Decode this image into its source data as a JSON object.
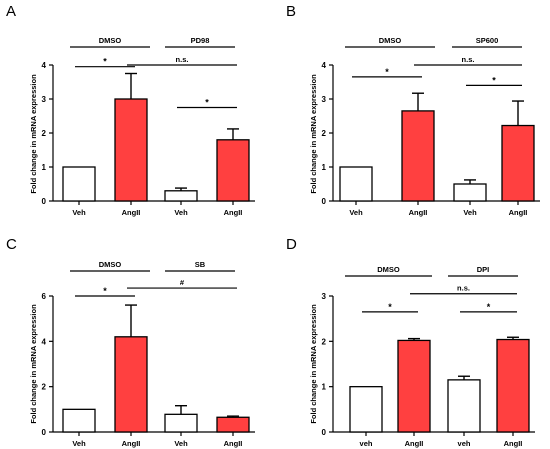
{
  "colors": {
    "bar_fill": "#ff4040",
    "bar_open": "#ffffff",
    "stroke": "#000000"
  },
  "chart_data": [
    {
      "type": "bar",
      "panel": "A",
      "ylabel": "Fold change in mRNA expression",
      "ylim": [
        0,
        4
      ],
      "yticks": [
        "0",
        "1",
        "2",
        "3",
        "4"
      ],
      "categories": [
        "Veh",
        "AngII",
        "Veh",
        "AngII"
      ],
      "values": [
        1.0,
        3.0,
        0.3,
        1.8
      ],
      "errors": [
        0,
        0.75,
        0.08,
        0.32
      ],
      "filled": [
        false,
        true,
        false,
        true
      ],
      "groups": [
        {
          "label": "DMSO",
          "bars": [
            0,
            1
          ]
        },
        {
          "label": "PD98",
          "bars": [
            2,
            3
          ]
        }
      ],
      "comparisons": [
        {
          "a": 0,
          "b": 1,
          "label": "*",
          "y": 3.95
        },
        {
          "a": 2,
          "b": 3,
          "label": "*",
          "y": 2.75
        },
        {
          "a": 1,
          "b": 3,
          "label": "n.s.",
          "y": 4.0
        }
      ]
    },
    {
      "type": "bar",
      "panel": "B",
      "ylabel": "Fold change in mRNA expression",
      "ylim": [
        0,
        4
      ],
      "yticks": [
        "0",
        "1",
        "2",
        "3",
        "4"
      ],
      "categories": [
        "Veh",
        "AngII",
        "Veh",
        "AngII"
      ],
      "values": [
        1.0,
        2.65,
        0.5,
        2.22
      ],
      "errors": [
        0,
        0.52,
        0.12,
        0.72
      ],
      "filled": [
        false,
        true,
        false,
        true
      ],
      "groups": [
        {
          "label": "DMSO",
          "bars": [
            0,
            1
          ]
        },
        {
          "label": "SP600",
          "bars": [
            2,
            3
          ]
        }
      ],
      "comparisons": [
        {
          "a": 0,
          "b": 1,
          "label": "*",
          "y": 3.65
        },
        {
          "a": 2,
          "b": 3,
          "label": "*",
          "y": 3.4
        },
        {
          "a": 1,
          "b": 3,
          "label": "n.s.",
          "y": 4.0
        }
      ]
    },
    {
      "type": "bar",
      "panel": "C",
      "ylabel": "Fold change in mRNA expression",
      "ylim": [
        0,
        6
      ],
      "yticks": [
        "0",
        "2",
        "4",
        "6"
      ],
      "categories": [
        "Veh",
        "AngII",
        "Veh",
        "AngII"
      ],
      "values": [
        1.0,
        4.2,
        0.78,
        0.65
      ],
      "errors": [
        0,
        1.4,
        0.38,
        0.05
      ],
      "filled": [
        false,
        true,
        false,
        true
      ],
      "groups": [
        {
          "label": "DMSO",
          "bars": [
            0,
            1
          ]
        },
        {
          "label": "SB",
          "bars": [
            2,
            3
          ]
        }
      ],
      "comparisons": [
        {
          "a": 0,
          "b": 1,
          "label": "*",
          "y": 6.0
        },
        {
          "a": 1,
          "b": 3,
          "label": "#",
          "y": 6.35
        }
      ]
    },
    {
      "type": "bar",
      "panel": "D",
      "ylabel": "Fold change in mRNA expression",
      "ylim": [
        0,
        3
      ],
      "yticks": [
        "0",
        "1",
        "2",
        "3"
      ],
      "categories": [
        "veh",
        "AngII",
        "veh",
        "AngII"
      ],
      "values": [
        1.0,
        2.02,
        1.15,
        2.04
      ],
      "errors": [
        0,
        0.04,
        0.08,
        0.05
      ],
      "filled": [
        false,
        true,
        false,
        true
      ],
      "groups": [
        {
          "label": "DMSO",
          "bars": [
            0,
            1
          ]
        },
        {
          "label": "DPI",
          "bars": [
            2,
            3
          ]
        }
      ],
      "comparisons": [
        {
          "a": 0,
          "b": 1,
          "label": "*",
          "y": 2.65
        },
        {
          "a": 2,
          "b": 3,
          "label": "*",
          "y": 2.65
        },
        {
          "a": 1,
          "b": 3,
          "label": "n.s.",
          "y": 3.05
        }
      ]
    }
  ]
}
